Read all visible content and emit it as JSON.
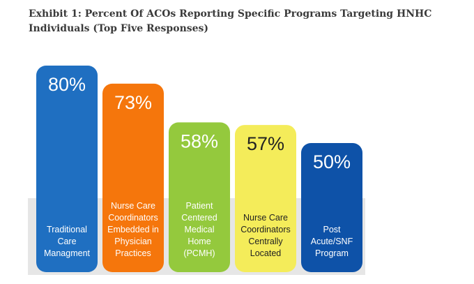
{
  "title": "Exhibit 1: Percent Of ACOs Reporting Specific Programs Targeting HNHC Individuals (Top Five Responses)",
  "chart_data": {
    "type": "bar",
    "title": "Exhibit 1: Percent Of ACOs Reporting Specific Programs Targeting HNHC Individuals (Top Five Responses)",
    "xlabel": "",
    "ylabel": "",
    "ylim": [
      0,
      100
    ],
    "grid": false,
    "legend": "none",
    "categories": [
      "Traditional Care Managment",
      "Nurse Care Coordinators Embedded in Physician Practices",
      "Patient Centered Medical Home (PCMH)",
      "Nurse Care Coordinators Centrally Located",
      "Post Acute/SNF Program"
    ],
    "category_lines": [
      [
        "Traditional",
        "Care",
        "Managment"
      ],
      [
        "Nurse Care",
        "Coordinators",
        "Embedded in",
        "Physician",
        "Practices"
      ],
      [
        "Patient",
        "Centered",
        "Medical",
        "Home",
        "(PCMH)"
      ],
      [
        "Nurse Care",
        "Coordinators",
        "Centrally",
        "Located"
      ],
      [
        "Post",
        "Acute/SNF",
        "Program"
      ]
    ],
    "values": [
      80,
      73,
      58,
      57,
      50
    ],
    "value_labels": [
      "80%",
      "73%",
      "58%",
      "57%",
      "50%"
    ],
    "colors": [
      "#1f6fc1",
      "#f5760c",
      "#94c93d",
      "#f4ec5a",
      "#0e52a8"
    ],
    "value_label_colors": [
      "#ffffff",
      "#ffffff",
      "#ffffff",
      "#222222",
      "#ffffff"
    ],
    "category_label_colors": [
      "#ffffff",
      "#ffffff",
      "#ffffff",
      "#222222",
      "#ffffff"
    ],
    "background_band_color": "#e6e6e6"
  }
}
